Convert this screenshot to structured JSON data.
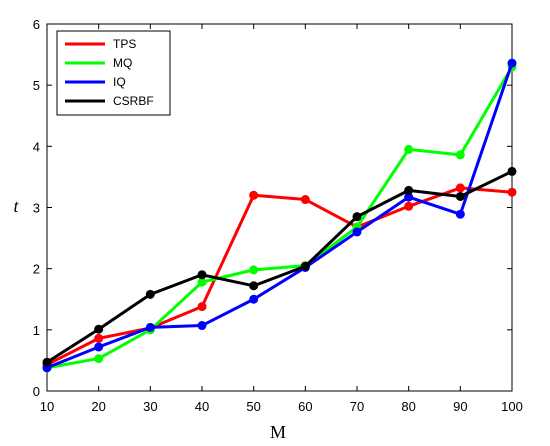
{
  "chart_data": {
    "type": "line",
    "xlabel": "M",
    "ylabel": "t",
    "x": [
      10,
      20,
      30,
      40,
      50,
      60,
      70,
      80,
      90,
      100
    ],
    "xlim": [
      10,
      100
    ],
    "ylim": [
      0,
      6
    ],
    "xticks": [
      10,
      20,
      30,
      40,
      50,
      60,
      70,
      80,
      90,
      100
    ],
    "yticks": [
      0,
      1,
      2,
      3,
      4,
      5,
      6
    ],
    "grid": false,
    "legend_position": "top-left",
    "series": [
      {
        "name": "TPS",
        "color": "#ff0000",
        "values": [
          0.43,
          0.86,
          1.03,
          1.38,
          3.2,
          3.13,
          2.68,
          3.02,
          3.32,
          3.25
        ]
      },
      {
        "name": "MQ",
        "color": "#00ff00",
        "values": [
          0.38,
          0.53,
          1.0,
          1.78,
          1.98,
          2.05,
          2.68,
          3.95,
          3.86,
          5.3
        ]
      },
      {
        "name": "IQ",
        "color": "#0000ff",
        "values": [
          0.38,
          0.72,
          1.04,
          1.07,
          1.5,
          2.02,
          2.6,
          3.17,
          2.89,
          5.36
        ]
      },
      {
        "name": "CSRBF",
        "color": "#000000",
        "values": [
          0.47,
          1.01,
          1.58,
          1.9,
          1.72,
          2.04,
          2.85,
          3.28,
          3.18,
          3.59
        ]
      }
    ]
  }
}
